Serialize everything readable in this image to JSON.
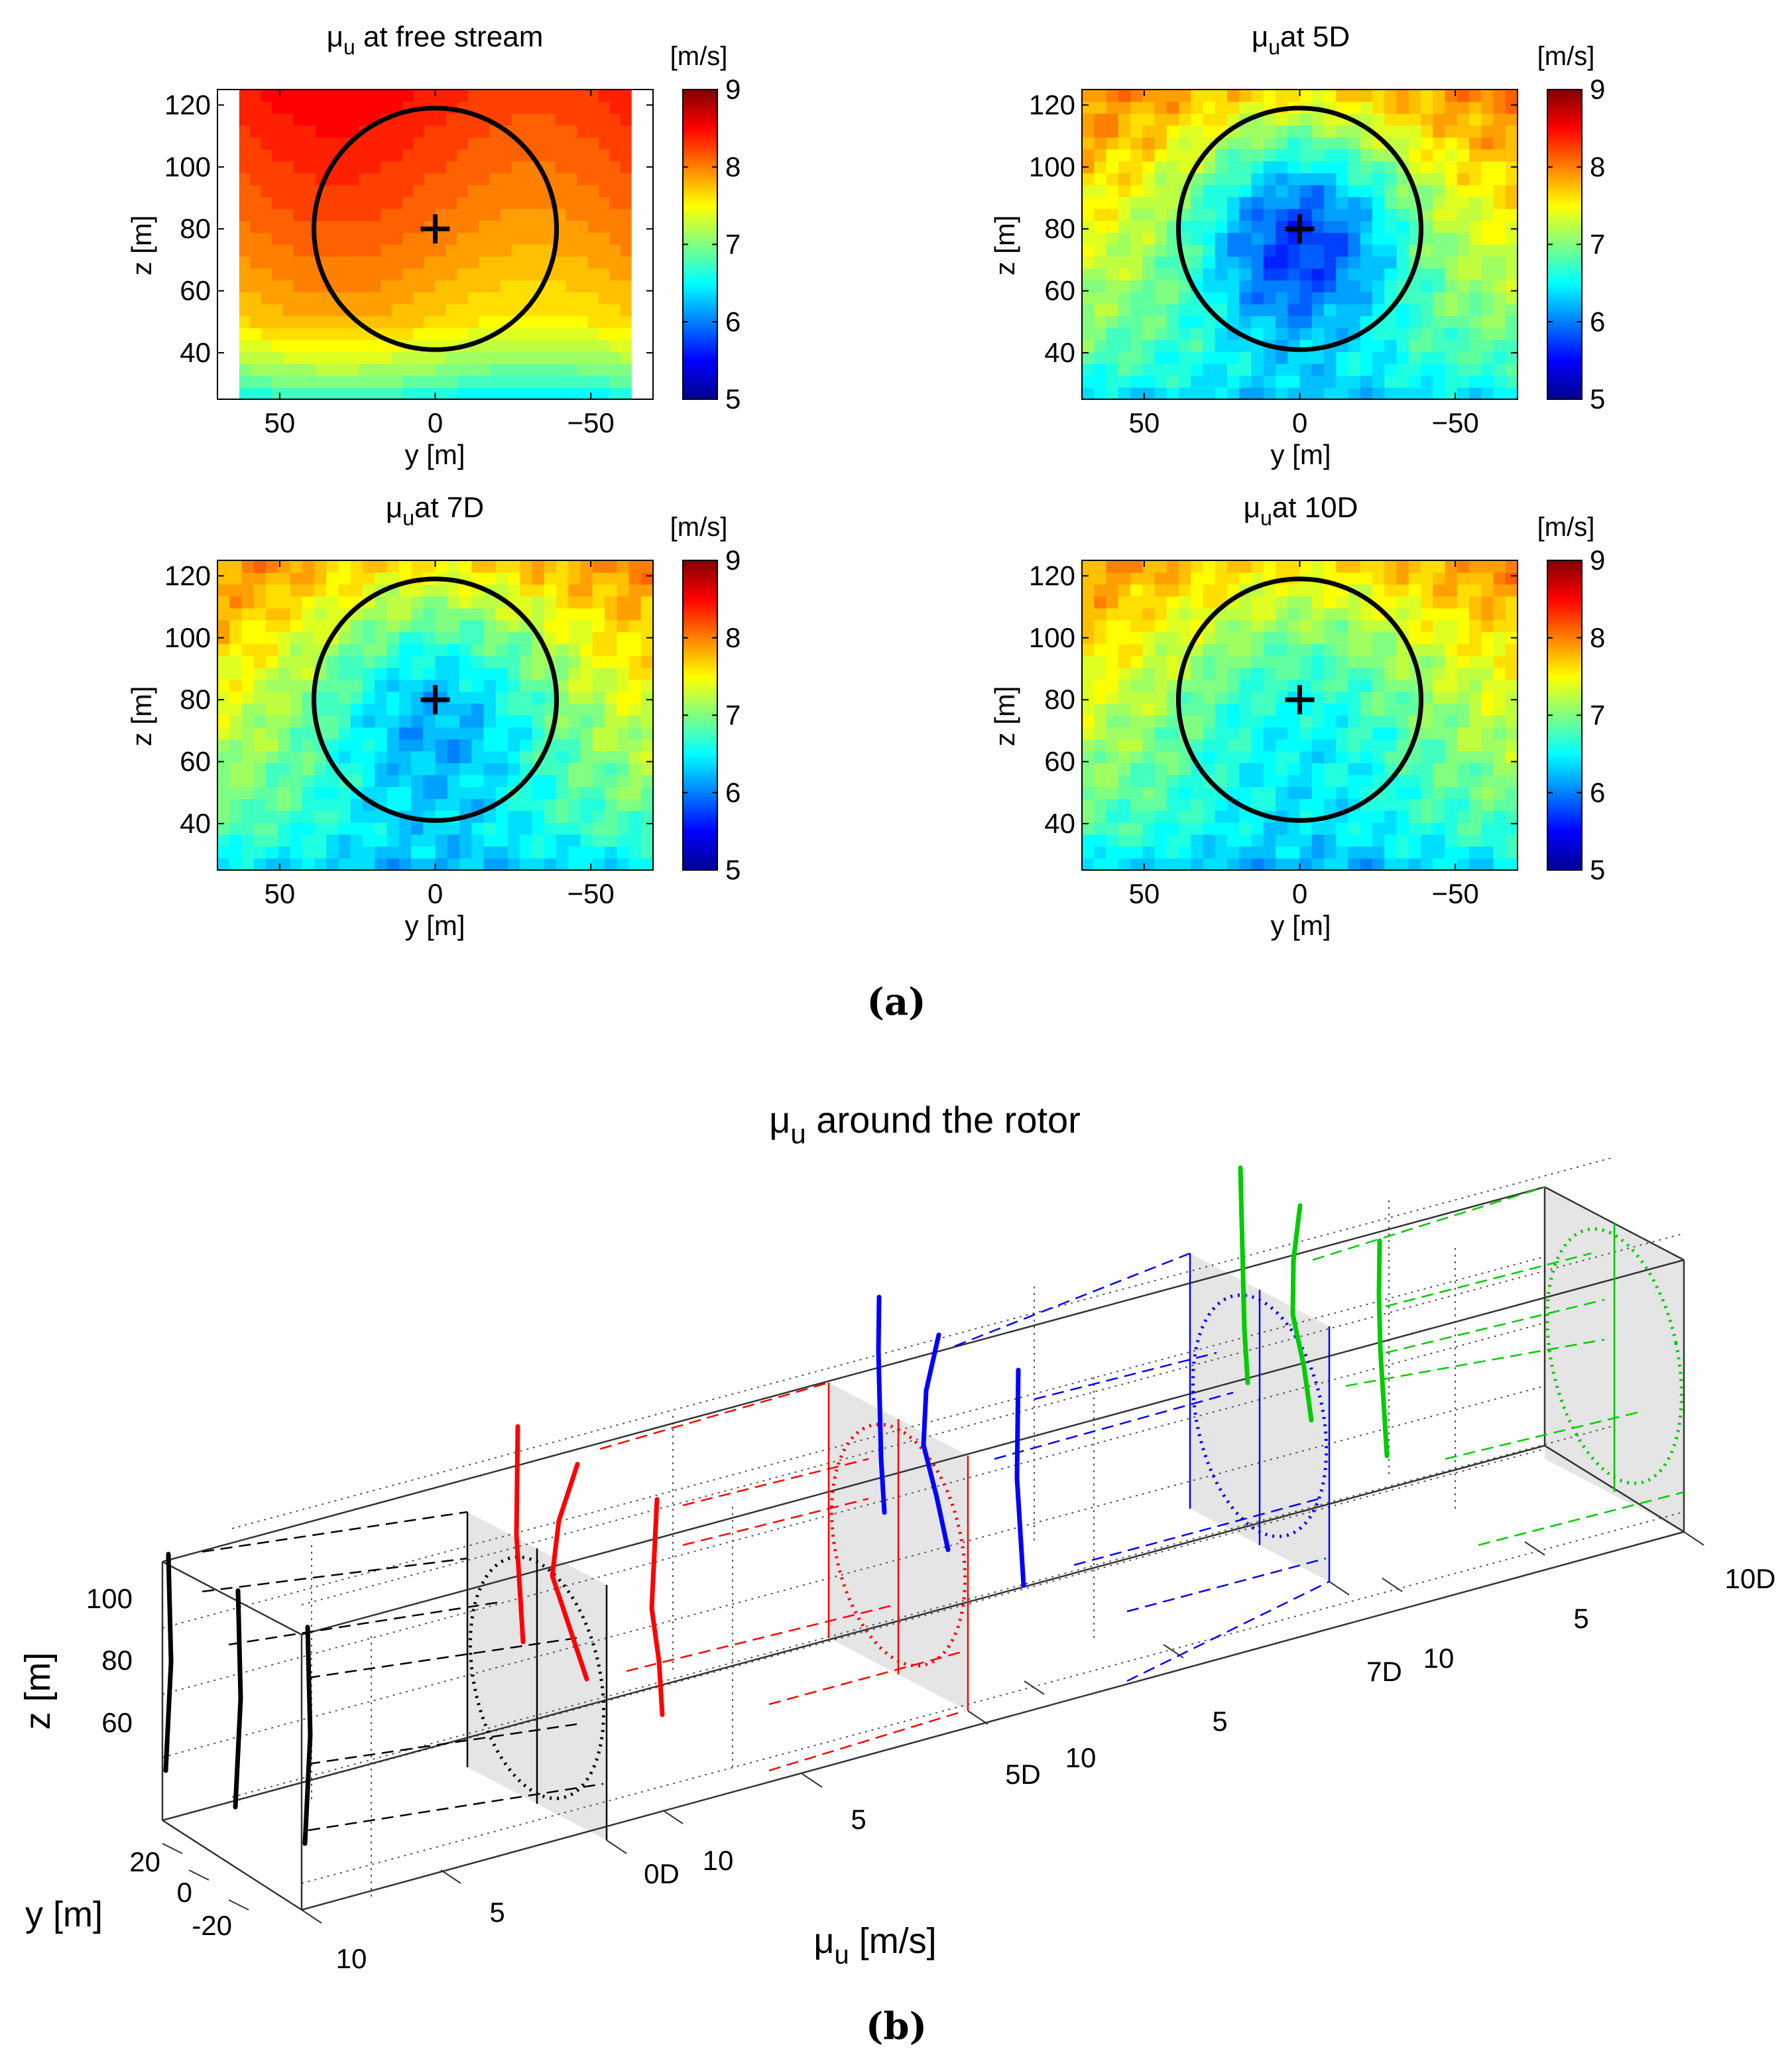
{
  "colors": {
    "scale": [
      "#00008f",
      "#0000ff",
      "#0080ff",
      "#00ffff",
      "#80ff80",
      "#ffff00",
      "#ff8000",
      "#ff0000",
      "#800000"
    ],
    "turbine_lines": [
      "#000000",
      "#ff0000",
      "#0000ff",
      "#00cc00"
    ],
    "shade": "#dcdcdc"
  },
  "captions": {
    "a": "(a)",
    "b": "(b)"
  },
  "chart_data": [
    {
      "type": "heatmap",
      "title_sym": "μ",
      "title_sub": "u",
      "title_rest": " at free stream",
      "unit": "[m/s]",
      "xlabel": "y [m]",
      "ylabel": "z [m]",
      "xlim": [
        70,
        -70
      ],
      "ylim": [
        25,
        125
      ],
      "xticks": [
        "50",
        "0",
        "−50"
      ],
      "xtick_values": [
        50,
        0,
        -50
      ],
      "yticks": [
        "40",
        "60",
        "80",
        "100",
        "120"
      ],
      "ytick_values": [
        40,
        60,
        80,
        100,
        120
      ],
      "clim": [
        5,
        9
      ],
      "cticks": [
        "5",
        "6",
        "7",
        "8",
        "9"
      ],
      "data_xrange": [
        63,
        -63
      ],
      "field": "freestream",
      "rotor": {
        "center_y": 0,
        "center_z": 80,
        "radius": 39
      }
    },
    {
      "type": "heatmap",
      "title_sym": "μ",
      "title_sub": "u",
      "title_rest": "at 5D",
      "unit": "[m/s]",
      "xlabel": "y [m]",
      "ylabel": "z [m]",
      "xlim": [
        70,
        -70
      ],
      "ylim": [
        25,
        125
      ],
      "xticks": [
        "50",
        "0",
        "−50"
      ],
      "xtick_values": [
        50,
        0,
        -50
      ],
      "yticks": [
        "40",
        "60",
        "80",
        "100",
        "120"
      ],
      "ytick_values": [
        40,
        60,
        80,
        100,
        120
      ],
      "clim": [
        5,
        9
      ],
      "cticks": [
        "5",
        "6",
        "7",
        "8",
        "9"
      ],
      "data_xrange": [
        70,
        -70
      ],
      "field": "wake",
      "deficit": 1.75,
      "wake_sigma": 26,
      "rotor": {
        "center_y": 0,
        "center_z": 80,
        "radius": 39
      }
    },
    {
      "type": "heatmap",
      "title_sym": "μ",
      "title_sub": "u",
      "title_rest": "at 7D",
      "unit": "[m/s]",
      "xlabel": "y [m]",
      "ylabel": "z [m]",
      "xlim": [
        70,
        -70
      ],
      "ylim": [
        25,
        125
      ],
      "xticks": [
        "50",
        "0",
        "−50"
      ],
      "xtick_values": [
        50,
        0,
        -50
      ],
      "yticks": [
        "40",
        "60",
        "80",
        "100",
        "120"
      ],
      "ytick_values": [
        40,
        60,
        80,
        100,
        120
      ],
      "clim": [
        5,
        9
      ],
      "cticks": [
        "5",
        "6",
        "7",
        "8",
        "9"
      ],
      "data_xrange": [
        70,
        -70
      ],
      "field": "wake",
      "deficit": 1.25,
      "wake_sigma": 30,
      "rotor": {
        "center_y": 0,
        "center_z": 80,
        "radius": 39
      }
    },
    {
      "type": "heatmap",
      "title_sym": "μ",
      "title_sub": "u",
      "title_rest": "at 10D",
      "unit": "[m/s]",
      "xlabel": "y [m]",
      "ylabel": "z [m]",
      "xlim": [
        70,
        -70
      ],
      "ylim": [
        25,
        125
      ],
      "xticks": [
        "50",
        "0",
        "−50"
      ],
      "xtick_values": [
        50,
        0,
        -50
      ],
      "yticks": [
        "40",
        "60",
        "80",
        "100",
        "120"
      ],
      "ytick_values": [
        40,
        60,
        80,
        100,
        120
      ],
      "clim": [
        5,
        9
      ],
      "cticks": [
        "5",
        "6",
        "7",
        "8",
        "9"
      ],
      "data_xrange": [
        70,
        -70
      ],
      "field": "wake",
      "deficit": 0.9,
      "wake_sigma": 34,
      "rotor": {
        "center_y": 0,
        "center_z": 80,
        "radius": 39
      }
    },
    {
      "type": "line",
      "projection": "3d",
      "title_sym": "μ",
      "title_sub": "u",
      "title_rest": " around the rotor",
      "zlabel": "z [m]",
      "ylabel": "y [m]",
      "xlabel_sym": "μ",
      "xlabel_sub": "u",
      "xlabel_rest": " [m/s]",
      "zticks": [
        "100",
        "80",
        "60"
      ],
      "yticks": [
        "20",
        "0",
        "-20"
      ],
      "downstream_labels": [
        "0D",
        "5D",
        "7D",
        "10D"
      ],
      "speed_tick_labels": [
        "5",
        "10"
      ],
      "series": [
        {
          "name": "0D",
          "profiles": [
            {
              "y_offset": 20,
              "z": [
                40,
                60,
                80,
                100,
                120
              ],
              "u": [
                7.0,
                7.5,
                8.0,
                8.3,
                8.6
              ]
            },
            {
              "y_offset": 0,
              "z": [
                40,
                60,
                80,
                100,
                120
              ],
              "u": [
                7.0,
                7.5,
                8.0,
                8.3,
                8.6
              ]
            },
            {
              "y_offset": -20,
              "z": [
                40,
                60,
                80,
                100,
                120
              ],
              "u": [
                7.0,
                7.5,
                8.0,
                8.3,
                8.6
              ]
            }
          ]
        },
        {
          "name": "5D",
          "profiles": [
            {
              "y_offset": 20,
              "z": [
                40,
                60,
                80,
                100,
                120
              ],
              "u": [
                6.8,
                7.0,
                7.2,
                7.6,
                8.0
              ]
            },
            {
              "y_offset": 0,
              "z": [
                40,
                60,
                80,
                100,
                120
              ],
              "u": [
                6.5,
                6.0,
                5.5,
                6.2,
                7.5
              ]
            },
            {
              "y_offset": -20,
              "z": [
                40,
                60,
                80,
                100,
                120
              ],
              "u": [
                6.8,
                7.0,
                7.0,
                7.5,
                8.0
              ]
            }
          ]
        },
        {
          "name": "7D",
          "profiles": [
            {
              "y_offset": 20,
              "z": [
                40,
                60,
                80,
                100,
                120
              ],
              "u": [
                6.8,
                7.0,
                7.3,
                7.6,
                8.0
              ]
            },
            {
              "y_offset": 0,
              "z": [
                40,
                60,
                80,
                100,
                120
              ],
              "u": [
                6.5,
                6.3,
                6.0,
                6.5,
                7.5
              ]
            },
            {
              "y_offset": -20,
              "z": [
                40,
                60,
                80,
                100,
                120
              ],
              "u": [
                6.8,
                7.0,
                7.2,
                7.6,
                8.0
              ]
            }
          ]
        },
        {
          "name": "10D",
          "profiles": [
            {
              "y_offset": 20,
              "z": [
                40,
                60,
                80,
                100,
                120
              ],
              "u": [
                6.9,
                7.1,
                7.4,
                7.7,
                8.0
              ]
            },
            {
              "y_offset": 0,
              "z": [
                40,
                60,
                80,
                100,
                120
              ],
              "u": [
                6.6,
                6.6,
                6.4,
                6.8,
                7.5
              ]
            },
            {
              "y_offset": -20,
              "z": [
                40,
                60,
                80,
                100,
                120
              ],
              "u": [
                6.9,
                7.1,
                7.3,
                7.6,
                8.0
              ]
            }
          ]
        }
      ]
    }
  ]
}
